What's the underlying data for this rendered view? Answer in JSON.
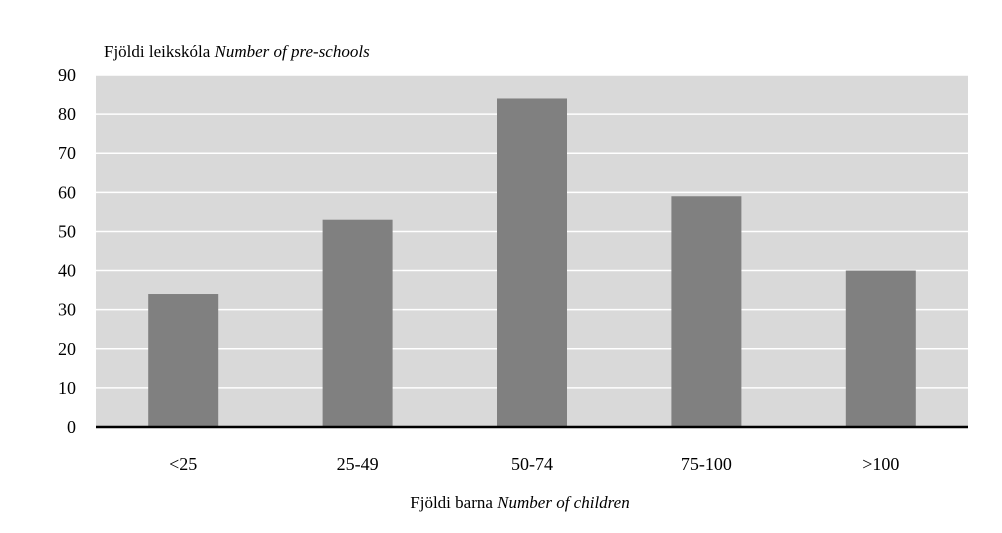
{
  "chart_data": {
    "type": "bar",
    "ylabel_is": "Fjöldi leikskóla",
    "ylabel_en": "Number of pre-schools",
    "xlabel_is": "Fjöldi barna",
    "xlabel_en": "Number of children",
    "categories": [
      "<25",
      "25-49",
      "50-74",
      "75-100",
      ">100"
    ],
    "values": [
      34,
      53,
      84,
      59,
      40
    ],
    "ylim": [
      0,
      90
    ],
    "yticks": [
      0,
      10,
      20,
      30,
      40,
      50,
      60,
      70,
      80,
      90
    ],
    "grid": true,
    "colors": {
      "background": "#ffffff",
      "plot_area": "#d9d9d9",
      "bar": "#808080",
      "gridline": "#ffffff",
      "axis": "#000000"
    }
  }
}
